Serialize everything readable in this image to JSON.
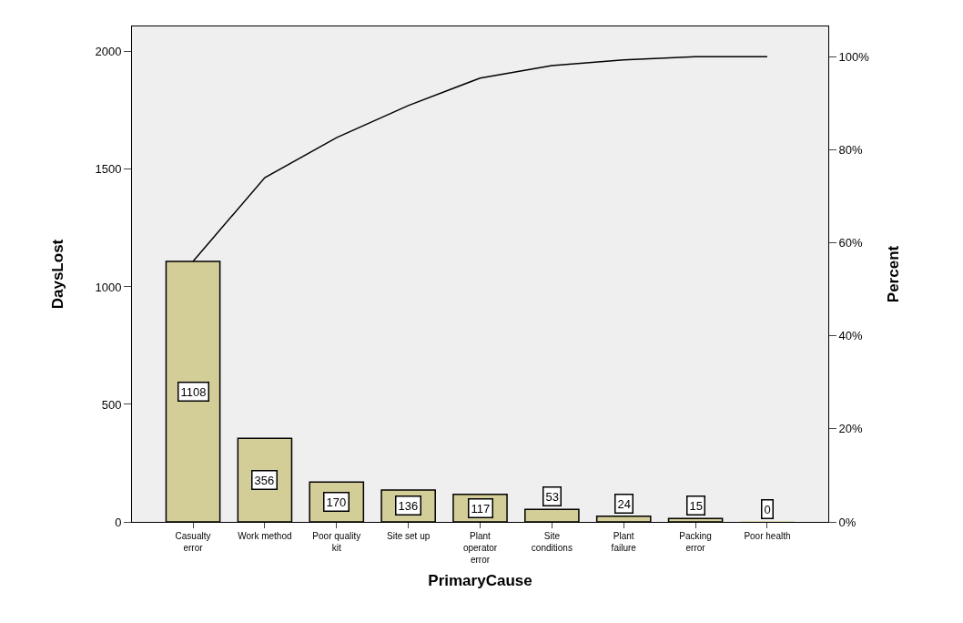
{
  "chart_data": {
    "type": "bar",
    "xlabel": "PrimaryCause",
    "ylabel": "DaysLost",
    "y2label": "Percent",
    "categories": [
      "Casualty error",
      "Work method",
      "Poor quality kit",
      "Site set up",
      "Plant operator error",
      "Site conditions",
      "Plant failure",
      "Packing error",
      "Poor health"
    ],
    "series": [
      {
        "color": "#d3cd97",
        "values": [
          1108,
          356,
          170,
          136,
          117,
          53,
          24,
          15,
          0
        ],
        "value_labels": [
          "1108",
          "356",
          "170",
          "136",
          "117",
          "53",
          "24",
          "15",
          "0"
        ]
      },
      {
        "type": "line",
        "axis": "y2",
        "color": "#000000",
        "values": [
          56.0,
          74.0,
          82.6,
          89.5,
          95.4,
          98.1,
          99.3,
          100,
          100
        ]
      }
    ],
    "ylim": [
      0,
      2108
    ],
    "yticks": [
      0,
      500,
      1000,
      1500,
      2000
    ],
    "y2lim": [
      0,
      106.5
    ],
    "y2ticks": [
      {
        "value": 0,
        "label": "0%"
      },
      {
        "value": 20,
        "label": "20%"
      },
      {
        "value": 40,
        "label": "40%"
      },
      {
        "value": 60,
        "label": "60%"
      },
      {
        "value": 80,
        "label": "80%"
      },
      {
        "value": 100,
        "label": "100%"
      }
    ],
    "grid": false,
    "legend": false,
    "marker": "none",
    "line_style": "solid"
  }
}
